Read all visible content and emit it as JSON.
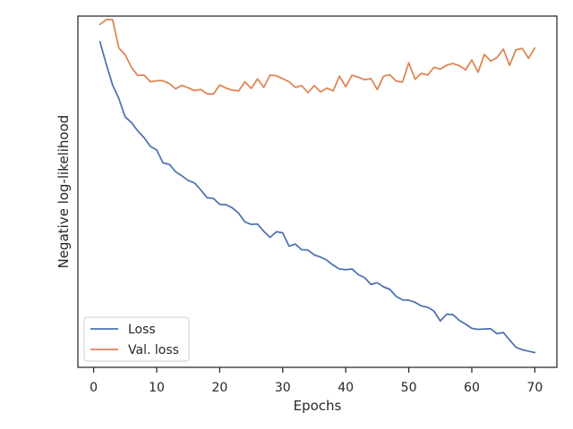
{
  "chart_data": {
    "type": "line",
    "title": "",
    "xlabel": "Epochs",
    "ylabel": "Negative log-likelihood",
    "xlim": [
      -2.5,
      73.5
    ],
    "ylim": [
      0,
      1
    ],
    "x_ticks": [
      0,
      10,
      20,
      30,
      40,
      50,
      60,
      70
    ],
    "y_ticks": [],
    "grid": false,
    "legend_position": "lower-left",
    "x": [
      1,
      2,
      3,
      4,
      5,
      6,
      7,
      8,
      9,
      10,
      11,
      12,
      13,
      14,
      15,
      16,
      17,
      18,
      19,
      20,
      21,
      22,
      23,
      24,
      25,
      26,
      27,
      28,
      29,
      30,
      31,
      32,
      33,
      34,
      35,
      36,
      37,
      38,
      39,
      40,
      41,
      42,
      43,
      44,
      45,
      46,
      47,
      48,
      49,
      50,
      51,
      52,
      53,
      54,
      55,
      56,
      57,
      58,
      59,
      60,
      61,
      62,
      63,
      64,
      65,
      66,
      67,
      68,
      69,
      70
    ],
    "series": [
      {
        "name": "Loss",
        "color": "#4c72b0",
        "values": [
          0.927,
          0.863,
          0.804,
          0.765,
          0.713,
          0.697,
          0.673,
          0.654,
          0.629,
          0.619,
          0.582,
          0.578,
          0.557,
          0.545,
          0.532,
          0.525,
          0.505,
          0.483,
          0.481,
          0.464,
          0.463,
          0.454,
          0.439,
          0.414,
          0.407,
          0.408,
          0.387,
          0.37,
          0.386,
          0.383,
          0.345,
          0.351,
          0.335,
          0.334,
          0.32,
          0.314,
          0.305,
          0.291,
          0.28,
          0.278,
          0.28,
          0.264,
          0.255,
          0.236,
          0.241,
          0.229,
          0.222,
          0.202,
          0.192,
          0.191,
          0.185,
          0.175,
          0.171,
          0.16,
          0.132,
          0.151,
          0.15,
          0.134,
          0.123,
          0.111,
          0.108,
          0.109,
          0.11,
          0.096,
          0.099,
          0.078,
          0.057,
          0.05,
          0.046,
          0.042
        ]
      },
      {
        "name": "Val. loss",
        "color": "#dd8452",
        "values": [
          0.976,
          0.99,
          0.99,
          0.909,
          0.89,
          0.854,
          0.831,
          0.832,
          0.813,
          0.816,
          0.816,
          0.808,
          0.793,
          0.803,
          0.796,
          0.788,
          0.791,
          0.779,
          0.778,
          0.804,
          0.795,
          0.789,
          0.787,
          0.813,
          0.794,
          0.821,
          0.797,
          0.832,
          0.83,
          0.822,
          0.813,
          0.797,
          0.802,
          0.782,
          0.802,
          0.784,
          0.795,
          0.787,
          0.829,
          0.799,
          0.832,
          0.826,
          0.819,
          0.822,
          0.791,
          0.829,
          0.833,
          0.815,
          0.812,
          0.867,
          0.82,
          0.837,
          0.832,
          0.854,
          0.849,
          0.86,
          0.865,
          0.859,
          0.847,
          0.875,
          0.84,
          0.891,
          0.872,
          0.882,
          0.906,
          0.86,
          0.904,
          0.908,
          0.88,
          0.909
        ]
      }
    ]
  }
}
